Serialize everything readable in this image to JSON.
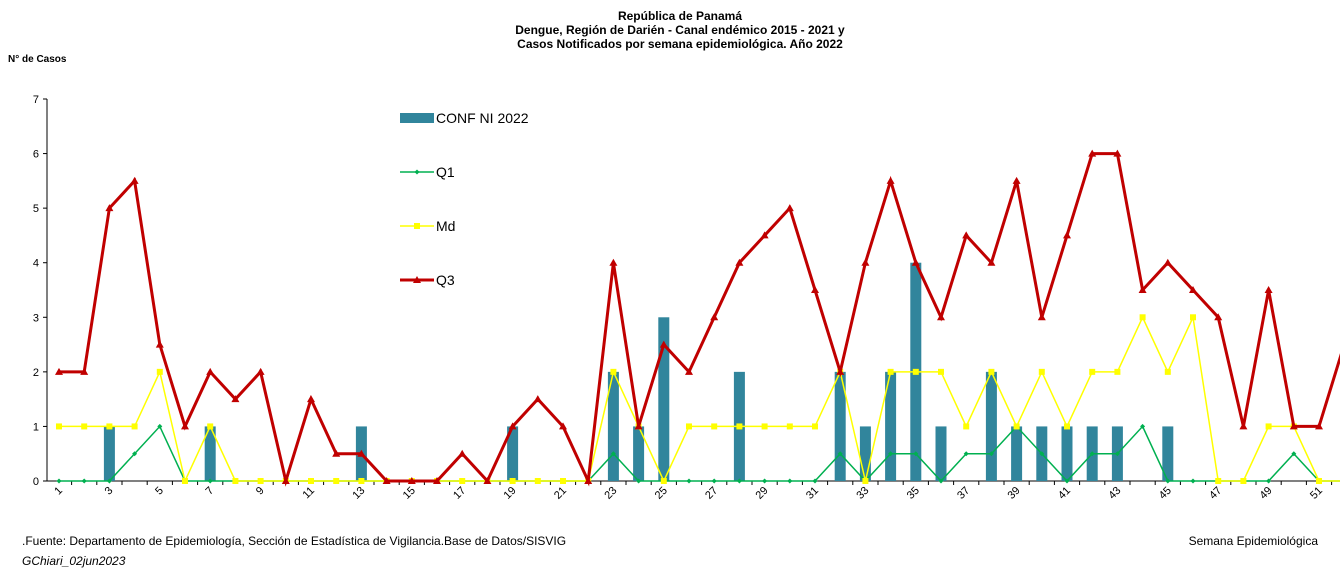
{
  "chart_data": {
    "type": "bar-line",
    "title": [
      "República de Panamá",
      "Dengue, Región de Darién - Canal endémico 2015 - 2021 y",
      "Casos Notificados por semana epidemiológica. Año 2022"
    ],
    "y_label": "N° de Casos",
    "x_label": "Semana Epidemiológica",
    "source": ".Fuente: Departamento de Epidemiología, Sección de Estadística de Vigilancia.Base de Datos/SISVIG",
    "credit": "GChiari_02jun2023",
    "categories": [
      "1",
      null,
      "3",
      null,
      "5",
      null,
      "7",
      null,
      "9",
      null,
      "11",
      null,
      "13",
      null,
      "15",
      null,
      "17",
      null,
      "19",
      null,
      "21",
      null,
      "23",
      null,
      "25",
      null,
      "27",
      null,
      "29",
      null,
      "31",
      null,
      "33",
      null,
      "35",
      null,
      "37",
      null,
      "39",
      null,
      "41",
      null,
      "43",
      null,
      "45",
      null,
      "47",
      null,
      "49",
      null,
      "51",
      null
    ],
    "ylim": [
      0,
      7
    ],
    "yticks": [
      0,
      1,
      2,
      3,
      4,
      5,
      6,
      7
    ],
    "series": [
      {
        "name": "CONF NI 2022",
        "type": "bar",
        "color": "#31859c",
        "values": [
          0,
          0,
          1,
          0,
          0,
          0,
          1,
          0,
          0,
          0,
          0,
          0,
          1,
          0,
          0,
          0,
          0,
          0,
          1,
          0,
          0,
          0,
          2,
          1,
          3,
          0,
          0,
          2,
          0,
          0,
          0,
          2,
          1,
          2,
          4,
          1,
          0,
          2,
          1,
          1,
          1,
          1,
          1,
          0,
          1,
          0,
          0,
          0,
          0,
          0,
          0,
          0
        ]
      },
      {
        "name": "Q1",
        "type": "line",
        "marker": "diamond",
        "color": "#00b050",
        "values": [
          0,
          0,
          0,
          0.5,
          1,
          0,
          0,
          0,
          0,
          0,
          0,
          0,
          0,
          0,
          0,
          0,
          0,
          0,
          0,
          0,
          0,
          0,
          0.5,
          0,
          0,
          0,
          0,
          0,
          0,
          0,
          0,
          0.5,
          0,
          0.5,
          0.5,
          0,
          0.5,
          0.5,
          1,
          0.5,
          0,
          0.5,
          0.5,
          1,
          0,
          0,
          0,
          0,
          0,
          0.5,
          0,
          0
        ]
      },
      {
        "name": "Md",
        "type": "line",
        "marker": "square",
        "color": "#ffff00",
        "values": [
          1,
          1,
          1,
          1,
          2,
          0,
          1,
          0,
          0,
          0,
          0,
          0,
          0,
          0,
          0,
          0,
          0,
          0,
          0,
          0,
          0,
          0,
          2,
          1,
          0,
          1,
          1,
          1,
          1,
          1,
          1,
          2,
          0,
          2,
          2,
          2,
          1,
          2,
          1,
          2,
          1,
          2,
          2,
          3,
          2,
          3,
          0,
          0,
          1,
          1,
          0,
          0
        ]
      },
      {
        "name": "Q3",
        "type": "line",
        "marker": "triangle",
        "color": "#c00000",
        "values": [
          2,
          2,
          5,
          5.5,
          2.5,
          1,
          2,
          1.5,
          2,
          0,
          1.5,
          0.5,
          0.5,
          0,
          0,
          0,
          0.5,
          0,
          1,
          1.5,
          1,
          0,
          4,
          1,
          2.5,
          2,
          3,
          4,
          4.5,
          5,
          3.5,
          2,
          4,
          5.5,
          4,
          3,
          4.5,
          4,
          5.5,
          3,
          4.5,
          6,
          6,
          3.5,
          4,
          3.5,
          3,
          1,
          3.5,
          1,
          1,
          2.5
        ]
      }
    ]
  }
}
